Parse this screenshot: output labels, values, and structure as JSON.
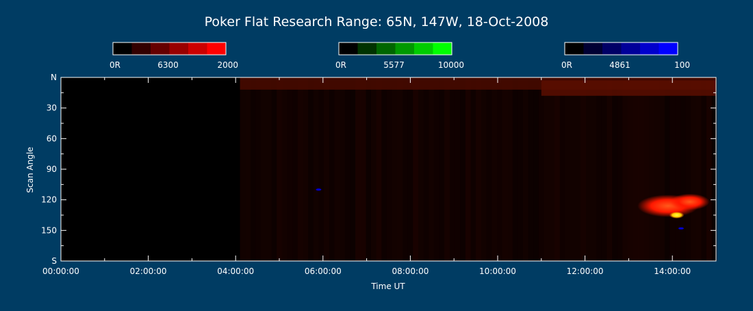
{
  "chart_data": {
    "type": "heatmap",
    "title": "Poker Flat Research Range: 65N, 147W, 18-Oct-2008",
    "xlabel": "Time UT",
    "ylabel": "Scan Angle",
    "x_ticks": [
      "00:00:00",
      "02:00:00",
      "04:00:00",
      "06:00:00",
      "08:00:00",
      "10:00:00",
      "12:00:00",
      "14:00:00"
    ],
    "x_range_hours": [
      0,
      15
    ],
    "y_ticks": [
      "N",
      "30",
      "60",
      "90",
      "120",
      "150",
      "S"
    ],
    "y_range_deg": [
      0,
      180
    ],
    "data_start_hour": 4.1,
    "colorbars": [
      {
        "wavelength": "6300",
        "min_label": "0R",
        "max_label": "2000",
        "colors": [
          "#000000",
          "#330000",
          "#660000",
          "#990000",
          "#cc0000",
          "#ff0000"
        ]
      },
      {
        "wavelength": "5577",
        "min_label": "0R",
        "max_label": "10000",
        "colors": [
          "#000000",
          "#003300",
          "#006600",
          "#009900",
          "#00cc00",
          "#00ff00"
        ]
      },
      {
        "wavelength": "4861",
        "min_label": "0R",
        "max_label": "100",
        "colors": [
          "#000000",
          "#000033",
          "#000066",
          "#000099",
          "#0000cc",
          "#0000ff"
        ]
      }
    ],
    "features": [
      {
        "type": "band",
        "t_start": 4.1,
        "t_end": 15,
        "angle_start": 0,
        "angle_end": 12,
        "color": "#4a0b00"
      },
      {
        "type": "band",
        "t_start": 11,
        "t_end": 15,
        "angle_start": 3,
        "angle_end": 18,
        "color": "#5a0e00"
      },
      {
        "type": "blob",
        "t_center": 13.9,
        "angle_center": 126,
        "t_radius": 0.7,
        "angle_radius": 11,
        "color": "#ff2a00"
      },
      {
        "type": "blob",
        "t_center": 14.4,
        "angle_center": 122,
        "t_radius": 0.45,
        "angle_radius": 8,
        "color": "#ff3300"
      },
      {
        "type": "hotspot",
        "t_center": 14.1,
        "angle_center": 135,
        "color": "#ffff00"
      },
      {
        "type": "dot",
        "t_center": 5.9,
        "angle_center": 110,
        "color": "#0000cc"
      },
      {
        "type": "dot",
        "t_center": 14.2,
        "angle_center": 148,
        "color": "#0000cc"
      }
    ]
  }
}
